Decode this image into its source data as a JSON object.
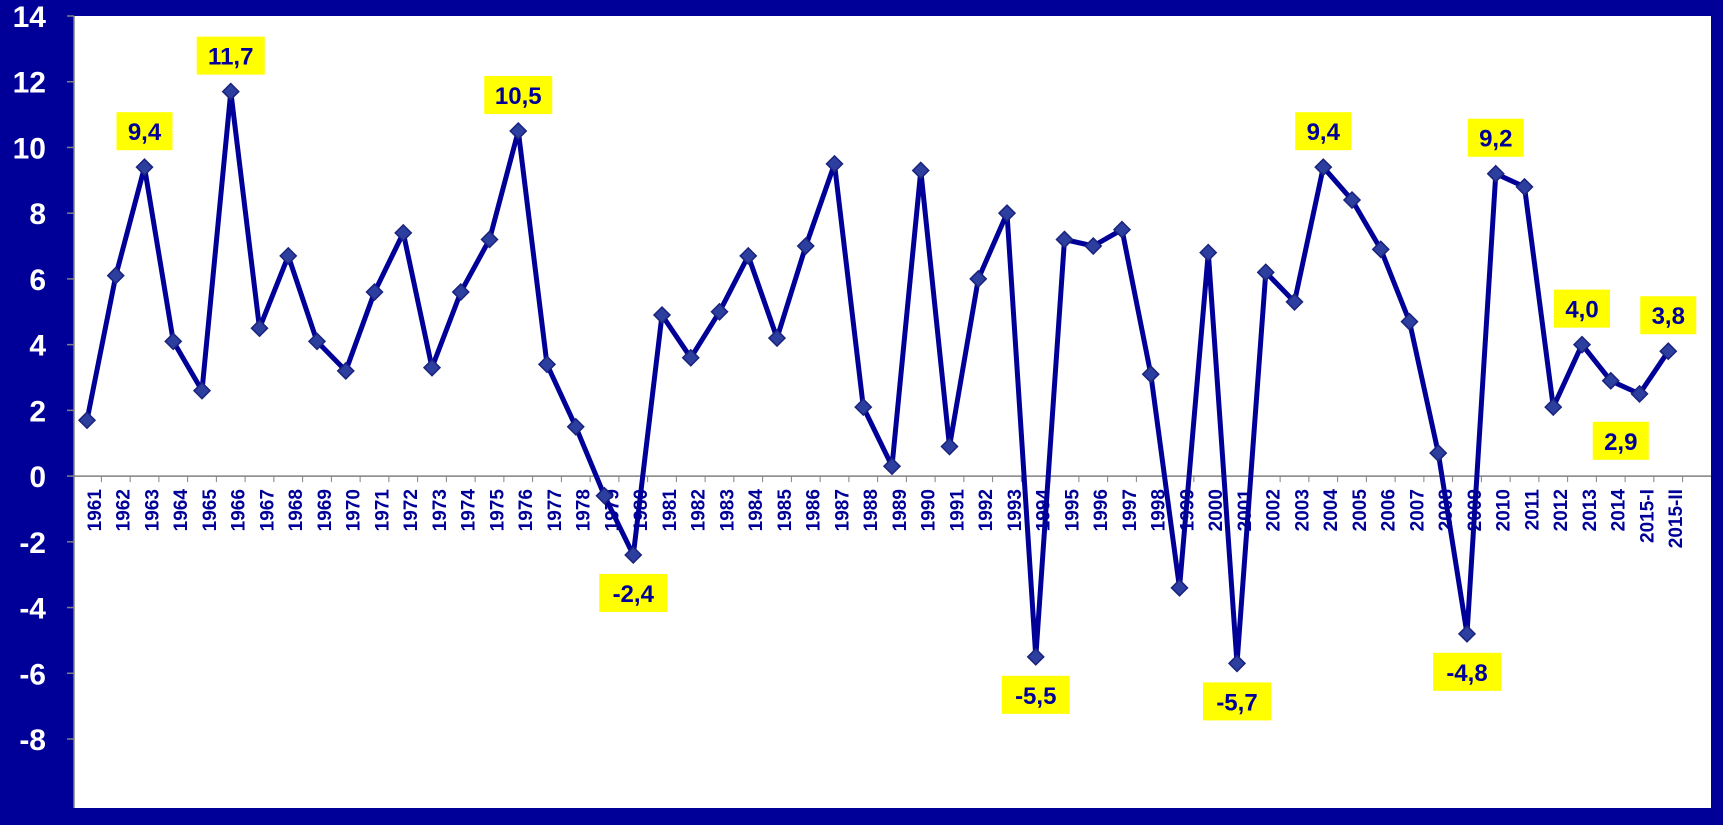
{
  "colors": {
    "background": "#000099",
    "plot_area": "#ffffff",
    "line": "#000099",
    "marker": "#2c3e9e",
    "label_box": "#ffff00",
    "label_text": "#000099",
    "y_tick_text": "#ffffff"
  },
  "chart_data": {
    "type": "line",
    "title": "",
    "xlabel": "",
    "ylabel": "",
    "ylim": [
      -8,
      14
    ],
    "y_ticks": [
      "-8",
      "-6",
      "-4",
      "-2",
      "0",
      "2",
      "4",
      "6",
      "8",
      "10",
      "12",
      "14"
    ],
    "grid": false,
    "legend": "none",
    "categories": [
      "1961",
      "1962",
      "1963",
      "1964",
      "1965",
      "1966",
      "1967",
      "1968",
      "1969",
      "1970",
      "1971",
      "1972",
      "1973",
      "1974",
      "1975",
      "1976",
      "1977",
      "1978",
      "1979",
      "1980",
      "1981",
      "1982",
      "1983",
      "1984",
      "1985",
      "1986",
      "1987",
      "1988",
      "1989",
      "1990",
      "1991",
      "1992",
      "1993",
      "1994",
      "1995",
      "1996",
      "1997",
      "1998",
      "1999",
      "2000",
      "2001",
      "2002",
      "2003",
      "2004",
      "2005",
      "2006",
      "2007",
      "2008",
      "2009",
      "2010",
      "2011",
      "2012",
      "2013",
      "2014",
      "2015-I",
      "2015-II"
    ],
    "values": [
      1.7,
      6.1,
      9.4,
      4.1,
      2.6,
      11.7,
      4.5,
      6.7,
      4.1,
      3.2,
      5.6,
      7.4,
      3.3,
      5.6,
      7.2,
      10.5,
      3.4,
      1.5,
      -0.6,
      -2.4,
      4.9,
      3.6,
      5.0,
      6.7,
      4.2,
      7.0,
      9.5,
      2.1,
      0.3,
      9.3,
      0.9,
      6.0,
      8.0,
      -5.5,
      7.2,
      7.0,
      7.5,
      3.1,
      -3.4,
      6.8,
      -5.7,
      6.2,
      5.3,
      9.4,
      8.4,
      6.9,
      4.7,
      0.7,
      -4.8,
      9.2,
      8.8,
      2.1,
      4.0,
      2.9,
      2.5,
      3.8
    ],
    "data_labels": [
      {
        "category": "1963",
        "text": "9,4",
        "placement": "above"
      },
      {
        "category": "1966",
        "text": "11,7",
        "placement": "above"
      },
      {
        "category": "1976",
        "text": "10,5",
        "placement": "above"
      },
      {
        "category": "1980",
        "text": "-2,4",
        "placement": "below"
      },
      {
        "category": "1994",
        "text": "-5,5",
        "placement": "below"
      },
      {
        "category": "2001",
        "text": "-5,7",
        "placement": "below"
      },
      {
        "category": "2004",
        "text": "9,4",
        "placement": "above"
      },
      {
        "category": "2009",
        "text": "-4,8",
        "placement": "below"
      },
      {
        "category": "2010",
        "text": "9,2",
        "placement": "above"
      },
      {
        "category": "2013",
        "text": "4,0",
        "placement": "above"
      },
      {
        "category": "2014",
        "text": "2,9",
        "placement": "below-left"
      },
      {
        "category": "2015-II",
        "text": "3,8",
        "placement": "above"
      }
    ]
  }
}
